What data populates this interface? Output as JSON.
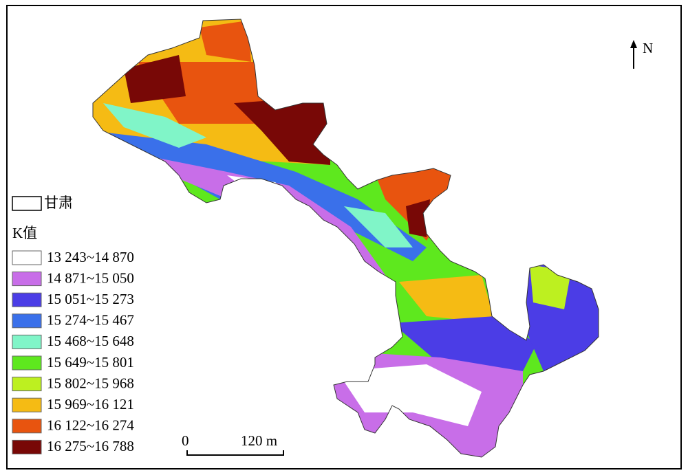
{
  "map": {
    "north_label": "N",
    "scale_bar": {
      "start": "0",
      "end": "120 m"
    },
    "legend": {
      "region_label": "甘肃",
      "title": "K值",
      "classes": [
        {
          "label": "13 243~14 870",
          "color": "#ffffff"
        },
        {
          "label": "14 871~15 050",
          "color": "#c86ee8"
        },
        {
          "label": "15 051~15 273",
          "color": "#4b3de6"
        },
        {
          "label": "15 274~15 467",
          "color": "#3a70ea"
        },
        {
          "label": "15 468~15 648",
          "color": "#80f5c8"
        },
        {
          "label": "15 649~15 801",
          "color": "#5ee81e"
        },
        {
          "label": "15 802~15 968",
          "color": "#bdf020"
        },
        {
          "label": "15 969~16 121",
          "color": "#f5bb14"
        },
        {
          "label": "16 122~16 274",
          "color": "#e8540f"
        },
        {
          "label": "16 275~16 788",
          "color": "#780806"
        }
      ]
    }
  }
}
